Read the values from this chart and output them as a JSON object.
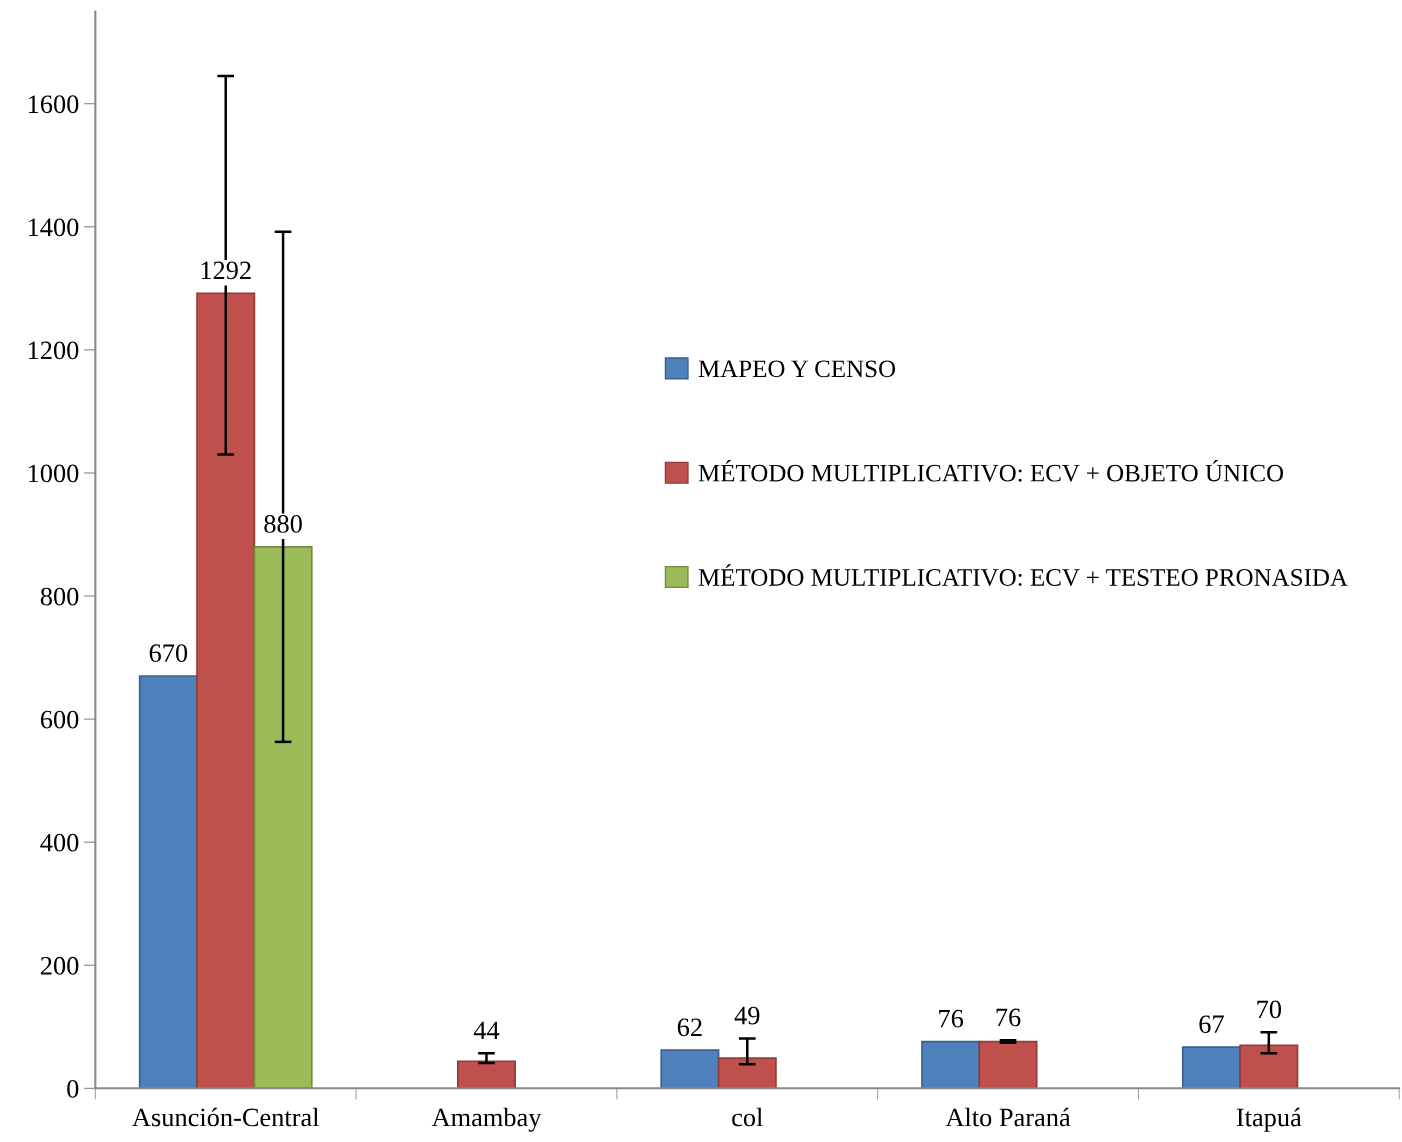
{
  "chart_data": {
    "type": "bar",
    "categories": [
      "Asunción-Central",
      "Amambay",
      "col",
      "Alto Paraná",
      "Itapuá"
    ],
    "series": [
      {
        "name": "MAPEO Y CENSO",
        "color": "#4f81bd",
        "values": [
          670,
          null,
          62,
          76,
          67
        ]
      },
      {
        "name": "MÉTODO MULTIPLICATIVO: ECV + OBJETO ÚNICO",
        "color": "#c0504d",
        "values": [
          1292,
          44,
          49,
          76,
          70
        ],
        "errors": [
          [
            1030,
            1645
          ],
          [
            41,
            57
          ],
          [
            39,
            81
          ],
          [
            74,
            78
          ],
          [
            57,
            91
          ]
        ]
      },
      {
        "name": "MÉTODO MULTIPLICATIVO: ECV + TESTEO PRONASIDA",
        "color": "#9bbb59",
        "values": [
          880,
          null,
          null,
          null,
          null
        ],
        "errors": [
          [
            563,
            1392
          ],
          null,
          null,
          null,
          null
        ]
      }
    ],
    "ylim": [
      0,
      1750
    ],
    "yticks": [
      0,
      200,
      400,
      600,
      800,
      1000,
      1200,
      1400,
      1600
    ],
    "data_labels": true,
    "grid": false,
    "legend": "right"
  }
}
